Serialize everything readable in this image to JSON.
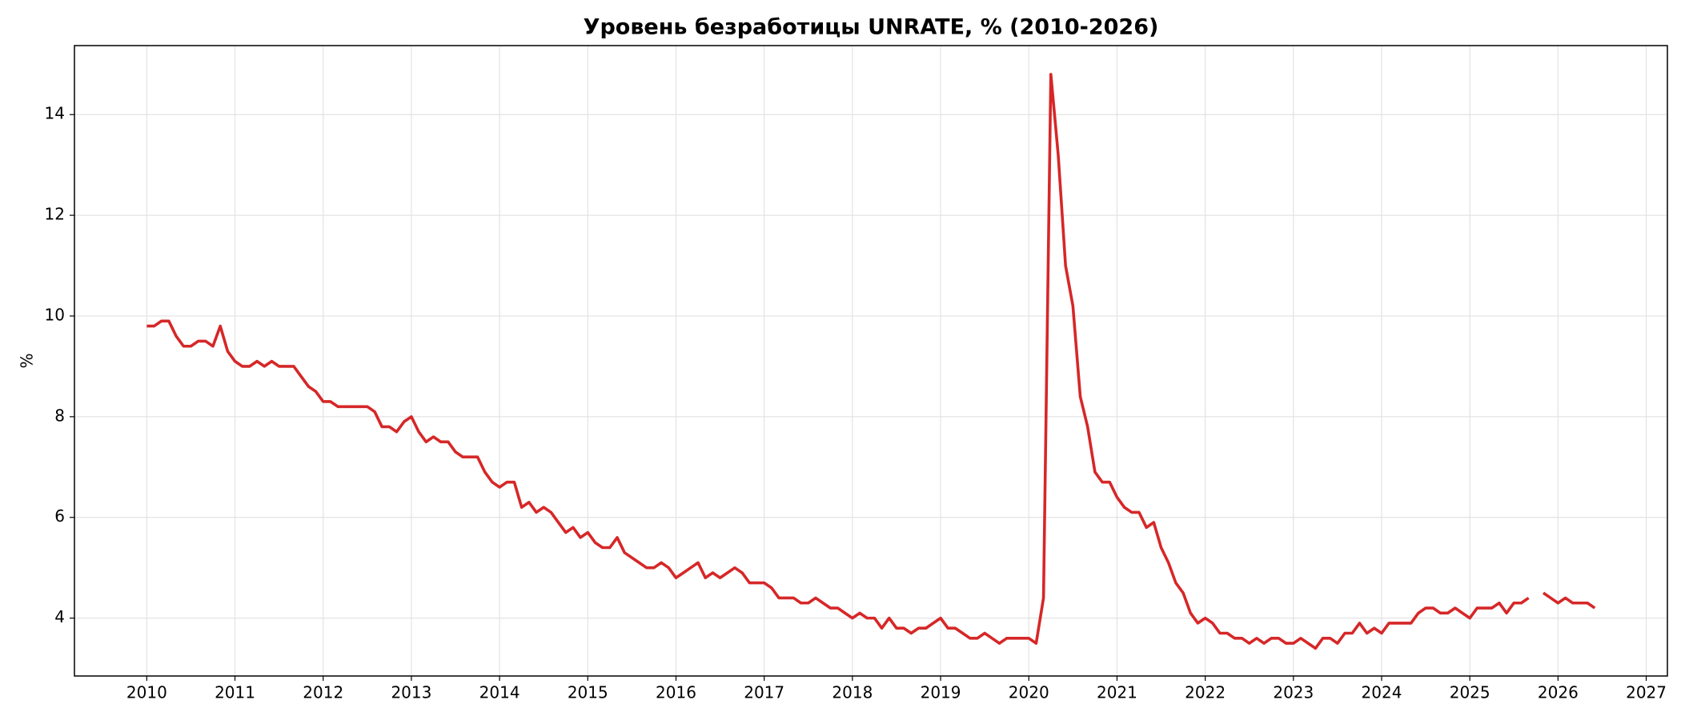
{
  "chart_data": {
    "type": "line",
    "title": "Уровень безработицы UNRATE, % (2010-2026)",
    "ylabel": "%",
    "color": "#d62728",
    "grid": true,
    "xlim": [
      2009.18,
      2027.24
    ],
    "xticks": [
      2010,
      2011,
      2012,
      2013,
      2014,
      2015,
      2016,
      2017,
      2018,
      2019,
      2020,
      2021,
      2022,
      2023,
      2024,
      2025,
      2026,
      2027
    ],
    "ylim": [
      2.85,
      15.37
    ],
    "yticks": [
      4,
      6,
      8,
      10,
      12,
      14
    ],
    "x": [
      "2010-01",
      "2010-02",
      "2010-03",
      "2010-04",
      "2010-05",
      "2010-06",
      "2010-07",
      "2010-08",
      "2010-09",
      "2010-10",
      "2010-11",
      "2010-12",
      "2011-01",
      "2011-02",
      "2011-03",
      "2011-04",
      "2011-05",
      "2011-06",
      "2011-07",
      "2011-08",
      "2011-09",
      "2011-10",
      "2011-11",
      "2011-12",
      "2012-01",
      "2012-02",
      "2012-03",
      "2012-04",
      "2012-05",
      "2012-06",
      "2012-07",
      "2012-08",
      "2012-09",
      "2012-10",
      "2012-11",
      "2012-12",
      "2013-01",
      "2013-02",
      "2013-03",
      "2013-04",
      "2013-05",
      "2013-06",
      "2013-07",
      "2013-08",
      "2013-09",
      "2013-10",
      "2013-11",
      "2013-12",
      "2014-01",
      "2014-02",
      "2014-03",
      "2014-04",
      "2014-05",
      "2014-06",
      "2014-07",
      "2014-08",
      "2014-09",
      "2014-10",
      "2014-11",
      "2014-12",
      "2015-01",
      "2015-02",
      "2015-03",
      "2015-04",
      "2015-05",
      "2015-06",
      "2015-07",
      "2015-08",
      "2015-09",
      "2015-10",
      "2015-11",
      "2015-12",
      "2016-01",
      "2016-02",
      "2016-03",
      "2016-04",
      "2016-05",
      "2016-06",
      "2016-07",
      "2016-08",
      "2016-09",
      "2016-10",
      "2016-11",
      "2016-12",
      "2017-01",
      "2017-02",
      "2017-03",
      "2017-04",
      "2017-05",
      "2017-06",
      "2017-07",
      "2017-08",
      "2017-09",
      "2017-10",
      "2017-11",
      "2017-12",
      "2018-01",
      "2018-02",
      "2018-03",
      "2018-04",
      "2018-05",
      "2018-06",
      "2018-07",
      "2018-08",
      "2018-09",
      "2018-10",
      "2018-11",
      "2018-12",
      "2019-01",
      "2019-02",
      "2019-03",
      "2019-04",
      "2019-05",
      "2019-06",
      "2019-07",
      "2019-08",
      "2019-09",
      "2019-10",
      "2019-11",
      "2019-12",
      "2020-01",
      "2020-02",
      "2020-03",
      "2020-04",
      "2020-05",
      "2020-06",
      "2020-07",
      "2020-08",
      "2020-09",
      "2020-10",
      "2020-11",
      "2020-12",
      "2021-01",
      "2021-02",
      "2021-03",
      "2021-04",
      "2021-05",
      "2021-06",
      "2021-07",
      "2021-08",
      "2021-09",
      "2021-10",
      "2021-11",
      "2021-12",
      "2022-01",
      "2022-02",
      "2022-03",
      "2022-04",
      "2022-05",
      "2022-06",
      "2022-07",
      "2022-08",
      "2022-09",
      "2022-10",
      "2022-11",
      "2022-12",
      "2023-01",
      "2023-02",
      "2023-03",
      "2023-04",
      "2023-05",
      "2023-06",
      "2023-07",
      "2023-08",
      "2023-09",
      "2023-10",
      "2023-11",
      "2023-12",
      "2024-01",
      "2024-02",
      "2024-03",
      "2024-04",
      "2024-05",
      "2024-06",
      "2024-07",
      "2024-08",
      "2024-09",
      "2024-10",
      "2024-11",
      "2024-12",
      "2025-01",
      "2025-02",
      "2025-03",
      "2025-04",
      "2025-05",
      "2025-06",
      "2025-07",
      "2025-08",
      "2025-09",
      "2025-10",
      "2025-11",
      "2025-12",
      "2026-01",
      "2026-02",
      "2026-03",
      "2026-04",
      "2026-05",
      "2026-06"
    ],
    "values": [
      9.8,
      9.8,
      9.9,
      9.9,
      9.6,
      9.4,
      9.4,
      9.5,
      9.5,
      9.4,
      9.8,
      9.3,
      9.1,
      9.0,
      9.0,
      9.1,
      9.0,
      9.1,
      9.0,
      9.0,
      9.0,
      8.8,
      8.6,
      8.5,
      8.3,
      8.3,
      8.2,
      8.2,
      8.2,
      8.2,
      8.2,
      8.1,
      7.8,
      7.8,
      7.7,
      7.9,
      8.0,
      7.7,
      7.5,
      7.6,
      7.5,
      7.5,
      7.3,
      7.2,
      7.2,
      7.2,
      6.9,
      6.7,
      6.6,
      6.7,
      6.7,
      6.2,
      6.3,
      6.1,
      6.2,
      6.1,
      5.9,
      5.7,
      5.8,
      5.6,
      5.7,
      5.5,
      5.4,
      5.4,
      5.6,
      5.3,
      5.2,
      5.1,
      5.0,
      5.0,
      5.1,
      5.0,
      4.8,
      4.9,
      5.0,
      5.1,
      4.8,
      4.9,
      4.8,
      4.9,
      5.0,
      4.9,
      4.7,
      4.7,
      4.7,
      4.6,
      4.4,
      4.4,
      4.4,
      4.3,
      4.3,
      4.4,
      4.3,
      4.2,
      4.2,
      4.1,
      4.0,
      4.1,
      4.0,
      4.0,
      3.8,
      4.0,
      3.8,
      3.8,
      3.7,
      3.8,
      3.8,
      3.9,
      4.0,
      3.8,
      3.8,
      3.7,
      3.6,
      3.6,
      3.7,
      3.6,
      3.5,
      3.6,
      3.6,
      3.6,
      3.6,
      3.5,
      4.4,
      14.8,
      13.2,
      11.0,
      10.2,
      8.4,
      7.8,
      6.9,
      6.7,
      6.7,
      6.4,
      6.2,
      6.1,
      6.1,
      5.8,
      5.9,
      5.4,
      5.1,
      4.7,
      4.5,
      4.1,
      3.9,
      4.0,
      3.9,
      3.7,
      3.7,
      3.6,
      3.6,
      3.5,
      3.6,
      3.5,
      3.6,
      3.6,
      3.5,
      3.5,
      3.6,
      3.5,
      3.4,
      3.6,
      3.6,
      3.5,
      3.7,
      3.7,
      3.9,
      3.7,
      3.8,
      3.7,
      3.9,
      3.9,
      3.9,
      3.9,
      4.1,
      4.2,
      4.2,
      4.1,
      4.1,
      4.2,
      4.1,
      4.0,
      4.2,
      4.2,
      4.2,
      4.3,
      4.1,
      4.3,
      4.3,
      4.4,
      null,
      4.5,
      4.4,
      4.3,
      4.4,
      4.3,
      4.3,
      4.3,
      4.2
    ]
  }
}
